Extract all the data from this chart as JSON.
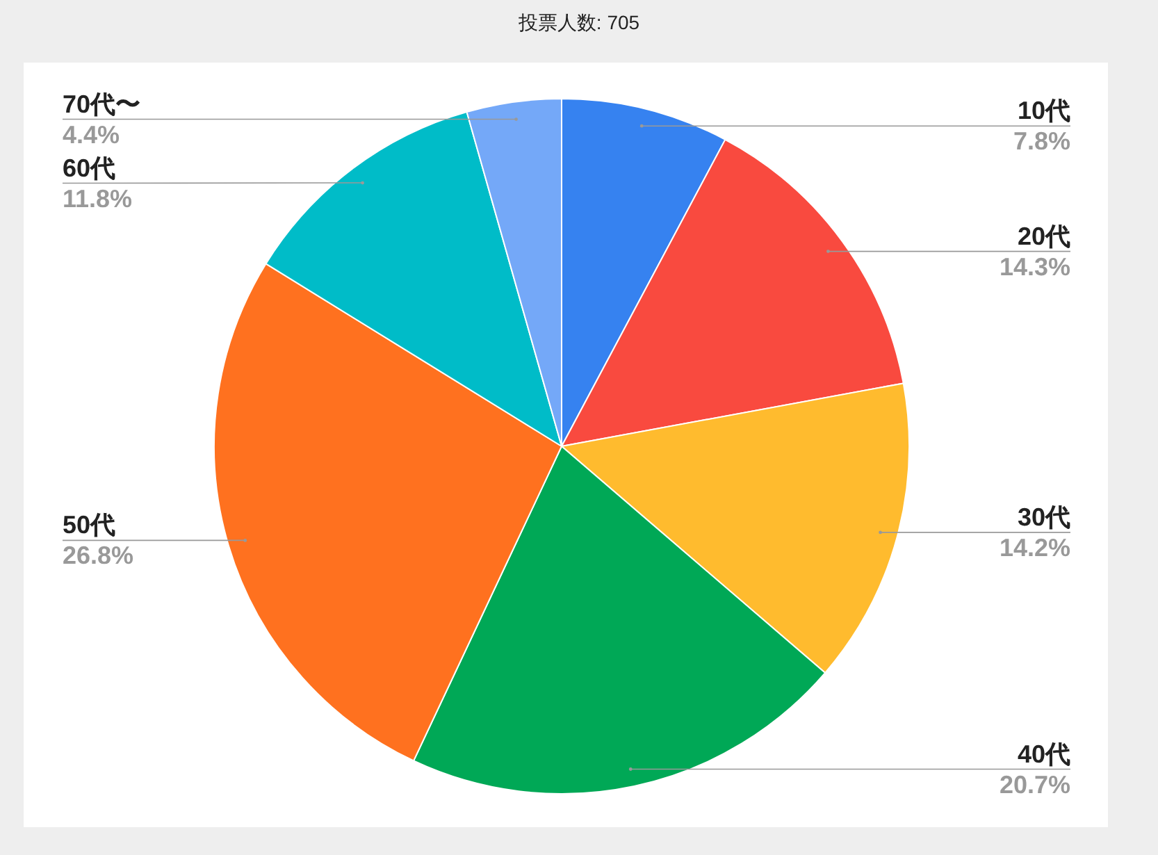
{
  "chart_data": {
    "type": "pie",
    "title": "投票人数: 705",
    "categories": [
      "10代",
      "20代",
      "30代",
      "40代",
      "50代",
      "60代",
      "70代〜"
    ],
    "values": [
      7.8,
      14.3,
      14.2,
      20.7,
      26.8,
      11.8,
      4.4
    ],
    "colors": [
      "#3682f0",
      "#f94a3f",
      "#ffbb2e",
      "#00a856",
      "#ff711f",
      "#00bcc8",
      "#74a8f8"
    ],
    "value_labels": [
      "7.8%",
      "14.3%",
      "14.2%",
      "20.7%",
      "26.8%",
      "11.8%",
      "4.4%"
    ]
  }
}
